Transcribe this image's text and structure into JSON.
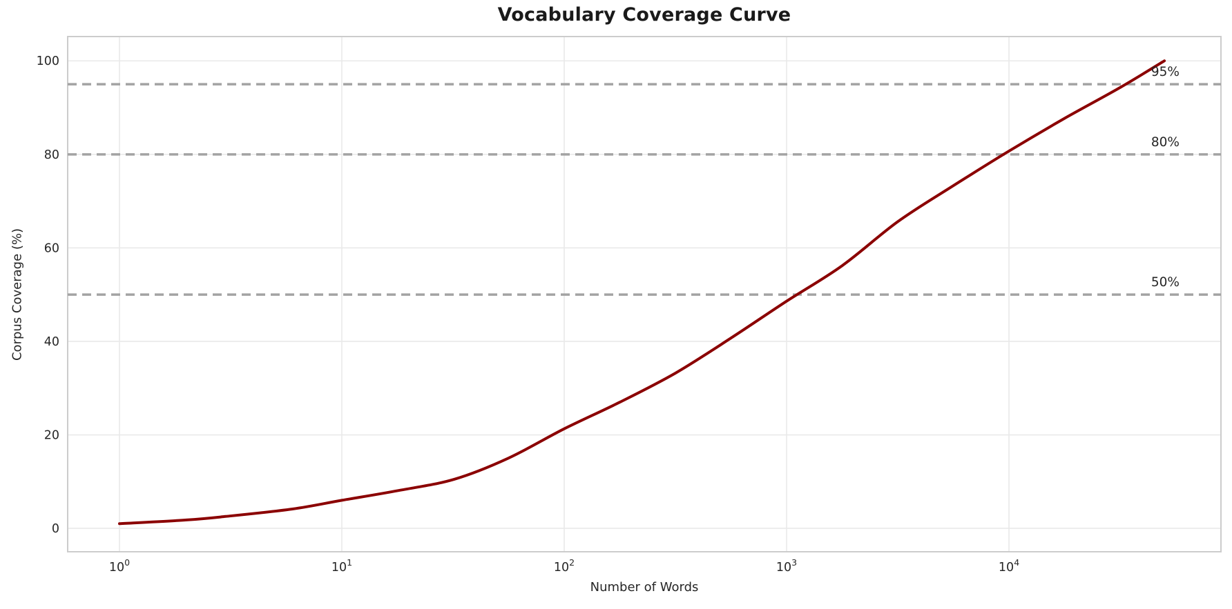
{
  "chart_data": {
    "type": "line",
    "title": "Vocabulary Coverage Curve",
    "xlabel": "Number of Words",
    "ylabel": "Corpus Coverage (%)",
    "x_scale": "log",
    "xlim": [
      0.585,
      89800
    ],
    "ylim": [
      -5,
      105.2
    ],
    "x_tick_exponents": [
      0,
      1,
      2,
      3,
      4
    ],
    "x_tick_base": "10",
    "y_ticks": [
      0,
      20,
      40,
      60,
      80,
      100
    ],
    "grid": true,
    "legend": "none",
    "series": [
      {
        "name": "vocabulary-coverage",
        "color": "#8B0000",
        "line_width": 4,
        "points": [
          [
            1,
            1.0
          ],
          [
            2,
            1.8
          ],
          [
            3,
            2.55
          ],
          [
            6,
            4.15
          ],
          [
            10,
            6.0
          ],
          [
            18,
            8.1
          ],
          [
            32,
            10.5
          ],
          [
            56,
            15.0
          ],
          [
            100,
            21.3
          ],
          [
            178,
            27.0
          ],
          [
            316,
            33.2
          ],
          [
            562,
            40.7
          ],
          [
            1000,
            48.6
          ],
          [
            1778,
            56.2
          ],
          [
            3162,
            65.6
          ],
          [
            5623,
            73.3
          ],
          [
            10000,
            80.7
          ],
          [
            17783,
            87.7
          ],
          [
            31623,
            94.3
          ],
          [
            50000,
            100.0
          ]
        ]
      }
    ],
    "thresholds": [
      {
        "value": 50,
        "label": "50%"
      },
      {
        "value": 80,
        "label": "80%"
      },
      {
        "value": 95,
        "label": "95%"
      }
    ],
    "threshold_color": "#a3a3a3",
    "grid_color": "#e9e9e9",
    "spine_color": "#cccccc",
    "tick_color": "#262626",
    "background_color": "#ffffff"
  }
}
